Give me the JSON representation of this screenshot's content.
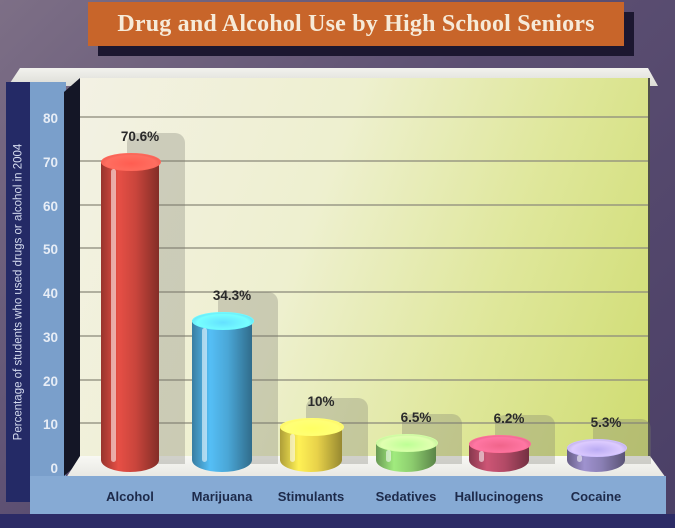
{
  "title": "Drug and Alcohol Use by High School Seniors",
  "chart_data": {
    "type": "bar",
    "title": "Drug and Alcohol Use by High School Seniors",
    "xlabel": "",
    "ylabel": "Percentage of students who used drugs or alcohol in 2004",
    "categories": [
      "Alcohol",
      "Marijuana",
      "Stimulants",
      "Sedatives",
      "Hallucinogens",
      "Cocaine"
    ],
    "values": [
      70.6,
      34.3,
      10,
      6.5,
      6.2,
      5.3
    ],
    "value_labels": [
      "70.6%",
      "34.3%",
      "10%",
      "6.5%",
      "6.2%",
      "5.3%"
    ],
    "colors": [
      "#c9453c",
      "#4aa6d6",
      "#e8d24a",
      "#8ccc6e",
      "#b24a66",
      "#8a7fb4"
    ],
    "yticks": [
      "0",
      "10",
      "20",
      "30",
      "40",
      "50",
      "60",
      "70",
      "80"
    ],
    "ylim": [
      0,
      80
    ],
    "grid": true,
    "legend": null,
    "style": "3d-cylinder"
  }
}
